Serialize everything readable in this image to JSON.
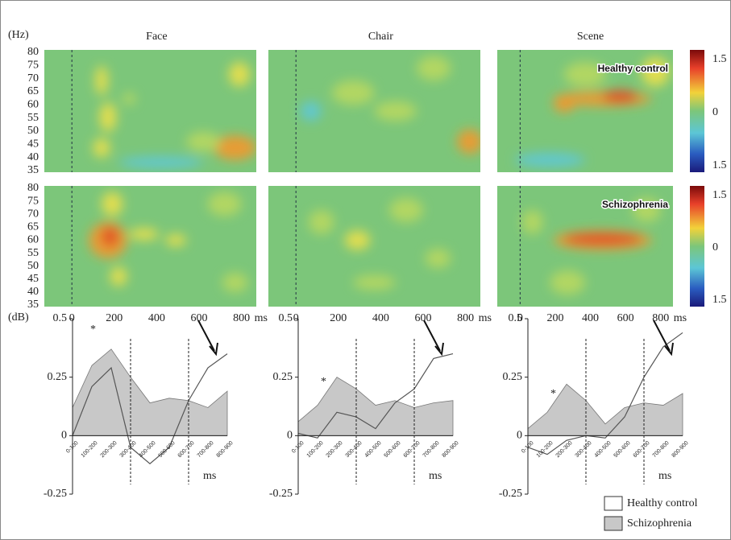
{
  "heatmaps": {
    "titles": [
      "Face",
      "Chair",
      "Scene"
    ],
    "groups": [
      "Healthy control",
      "Schizophrenia"
    ],
    "y_label": "(Hz)",
    "ylim": [
      35,
      80
    ],
    "yticks": [
      35,
      40,
      45,
      50,
      55,
      60,
      65,
      70,
      75,
      80
    ],
    "xlim": [
      -130,
      870
    ],
    "xticks": [
      0,
      200,
      400,
      600,
      800
    ],
    "x_unit": "ms",
    "colorbar": {
      "lim": [
        -1.5,
        1.5
      ],
      "ticks": [
        {
          "value": 1.5,
          "label": "1.5"
        },
        0,
        {
          "value": -1.5,
          "label": "1.5"
        }
      ]
    }
  },
  "chart_data": [
    {
      "type": "area",
      "y_label": "(dB)",
      "x_label": "ms",
      "annotation": "*",
      "categories": [
        "0-100",
        "100-200",
        "200-300",
        "300-400",
        "400-500",
        "500-600",
        "600-700",
        "700-800",
        "800-900"
      ],
      "ylim": [
        -0.25,
        0.5
      ],
      "yticks": [
        -0.25,
        0,
        0.25,
        0.5
      ],
      "series": [
        {
          "name": "Healthy control",
          "color": "#ffffff",
          "values": [
            0,
            0.21,
            0.29,
            -0.05,
            -0.12,
            -0.05,
            0.15,
            0.29,
            0.35
          ]
        },
        {
          "name": "Schizophrenia",
          "color": "#c8c8c8",
          "values": [
            0.12,
            0.3,
            0.37,
            0.25,
            0.14,
            0.16,
            0.15,
            0.12,
            0.19
          ]
        }
      ]
    },
    {
      "type": "area",
      "x_label": "ms",
      "annotation": "*",
      "categories": [
        "0-100",
        "100-200",
        "200-300",
        "300-400",
        "400-500",
        "500-600",
        "600-700",
        "700-800",
        "800-900"
      ],
      "ylim": [
        -0.25,
        0.5
      ],
      "yticks": [
        -0.25,
        0,
        0.25,
        0.5
      ],
      "series": [
        {
          "name": "Healthy control",
          "color": "#ffffff",
          "values": [
            0.01,
            -0.01,
            0.1,
            0.08,
            0.03,
            0.14,
            0.2,
            0.33,
            0.35
          ]
        },
        {
          "name": "Schizophrenia",
          "color": "#c8c8c8",
          "values": [
            0.06,
            0.13,
            0.25,
            0.2,
            0.13,
            0.15,
            0.12,
            0.14,
            0.15
          ]
        }
      ]
    },
    {
      "type": "area",
      "x_label": "ms",
      "annotation": "*",
      "categories": [
        "0-100",
        "100-200",
        "200-300",
        "300-400",
        "400-500",
        "500-600",
        "600-700",
        "700-800",
        "800-900"
      ],
      "ylim": [
        -0.25,
        0.5
      ],
      "yticks": [
        -0.25,
        0,
        0.25,
        0.5
      ],
      "series": [
        {
          "name": "Healthy control",
          "color": "#ffffff",
          "values": [
            -0.05,
            -0.08,
            -0.02,
            0,
            -0.01,
            0.08,
            0.25,
            0.38,
            0.44
          ]
        },
        {
          "name": "Schizophrenia",
          "color": "#c8c8c8",
          "values": [
            0.03,
            0.1,
            0.22,
            0.15,
            0.05,
            0.12,
            0.14,
            0.13,
            0.18
          ]
        }
      ]
    }
  ]
}
